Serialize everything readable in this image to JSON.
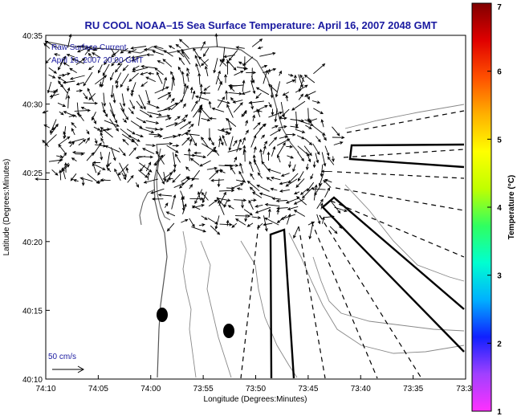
{
  "title": "RU COOL  NOAA–15  Sea Surface Temperature:  April 16, 2007 2048 GMT",
  "annotation": {
    "line1": "Raw Surface Current",
    "line2": "April 16, 2007 20:00 GMT"
  },
  "scale_label": "50 cm/s",
  "axes": {
    "x_label": "Longitude (Degrees:Minutes)",
    "y_label": "Latitude (Degrees:Minutes)",
    "x_ticks": [
      "74:10",
      "74:05",
      "74:00",
      "73:55",
      "73:50",
      "73:45",
      "73:40",
      "73:35",
      "73:3"
    ],
    "y_ticks": [
      "40:35",
      "40:30",
      "40:25",
      "40:20",
      "40:15",
      "40:10"
    ]
  },
  "colorbar": {
    "label": "Temperature (°C)",
    "ticks": [
      "7",
      "6",
      "5",
      "4",
      "3",
      "2",
      "1"
    ],
    "colors": [
      "#ff30ff",
      "#a040ff",
      "#1020ff",
      "#00b0ff",
      "#00ffd0",
      "#30ff60",
      "#c0ff00",
      "#ffff00",
      "#ffb000",
      "#ff5000",
      "#e00000",
      "#800000"
    ]
  }
}
